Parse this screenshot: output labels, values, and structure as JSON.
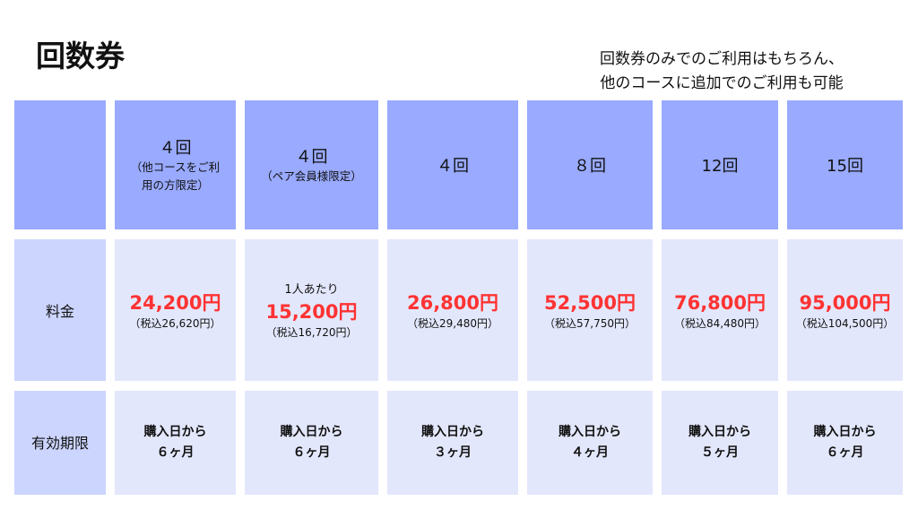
{
  "title": "回数券",
  "subtitle": [
    "回数券のみでのご利用はもちろん、",
    "他のコースに追加でのご利用も可能"
  ],
  "row_labels": {
    "price": "料金",
    "validity": "有効期限"
  },
  "columns": [
    {
      "name": "４回",
      "note": "（他コースをご利\n用の方限定）",
      "per": "",
      "price": "24,200円",
      "tax": "（税込26,620円）",
      "validity": [
        "購入日から",
        "６ヶ月"
      ]
    },
    {
      "name": "４回",
      "note": "（ペア会員様限定）",
      "per": "1人あたり",
      "price": "15,200円",
      "tax": "（税込16,720円）",
      "validity": [
        "購入日から",
        "６ヶ月"
      ]
    },
    {
      "name": "４回",
      "note": "",
      "per": "",
      "price": "26,800円",
      "tax": "（税込29,480円）",
      "validity": [
        "購入日から",
        "３ヶ月"
      ]
    },
    {
      "name": "８回",
      "note": "",
      "per": "",
      "price": "52,500円",
      "tax": "（税込57,750円）",
      "validity": [
        "購入日から",
        "４ヶ月"
      ]
    },
    {
      "name": "12回",
      "note": "",
      "per": "",
      "price": "76,800円",
      "tax": "（税込84,480円）",
      "validity": [
        "購入日から",
        "５ヶ月"
      ]
    },
    {
      "name": "15回",
      "note": "",
      "per": "",
      "price": "95,000円",
      "tax": "（税込104,500円）",
      "validity": [
        "購入日から",
        "６ヶ月"
      ]
    }
  ],
  "colors": {
    "header": "#99aaff",
    "label": "#ccd5fd",
    "body": "#e3e7fc",
    "price": "#ff3333"
  }
}
